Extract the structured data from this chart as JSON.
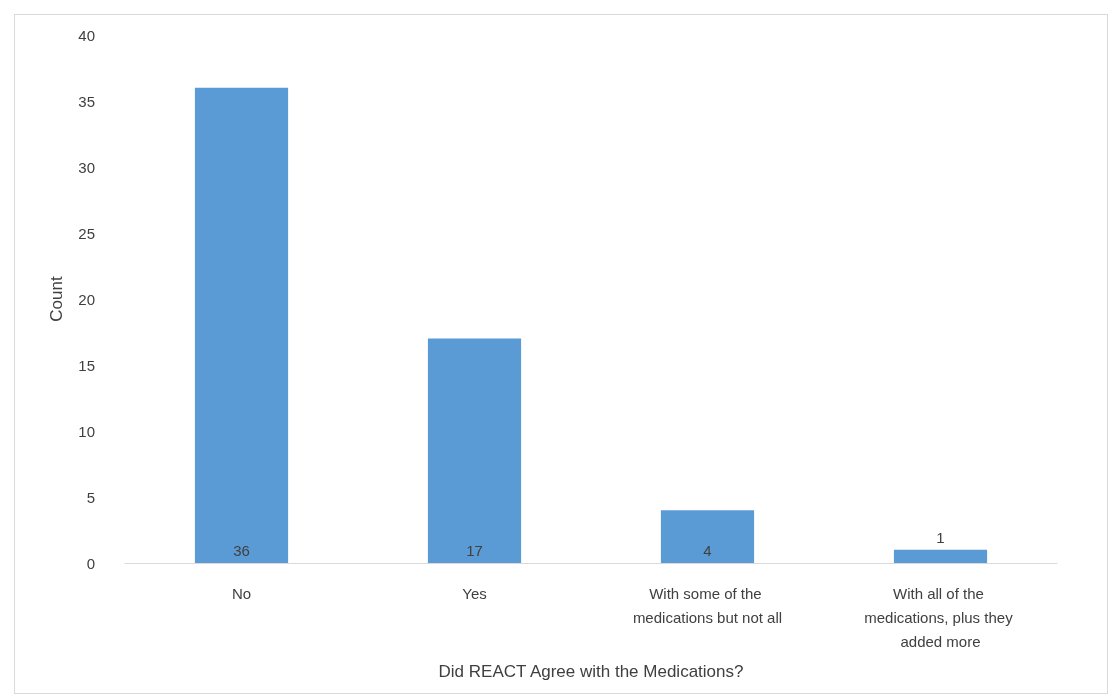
{
  "chart_data": {
    "type": "bar",
    "xlabel": "Did REACT Agree with the Medications?",
    "ylabel": "Count",
    "categories": [
      "No",
      "Yes",
      "With some of the medications but not all",
      "With all of the medications, plus they added more"
    ],
    "values": [
      36,
      17,
      4,
      1
    ],
    "color": "#5b9bd5",
    "ylim": [
      0,
      40
    ],
    "yticks": [
      0,
      5,
      10,
      15,
      20,
      25,
      30,
      35,
      40
    ],
    "grid": false,
    "data_labels": true
  }
}
